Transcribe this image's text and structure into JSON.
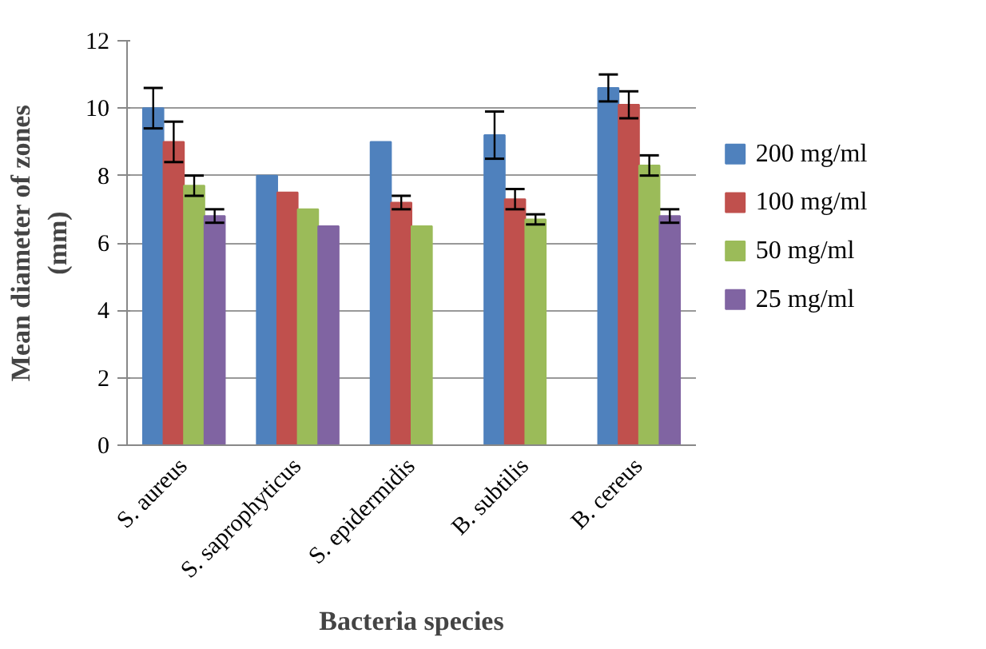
{
  "chart_data": {
    "type": "bar",
    "xlabel": "Bacteria species",
    "ylabel": "Mean diameter of zones\n(mm)",
    "categories": [
      "S. aureus",
      "S. saprophyticus",
      "S. epidermidis",
      "B. subtilis",
      "B. cereus"
    ],
    "series": [
      {
        "name": "200 mg/ml",
        "color": "#4f81bd",
        "values": [
          10,
          8,
          9,
          9.2,
          10.6
        ],
        "errors": [
          0.6,
          null,
          null,
          0.7,
          0.4
        ]
      },
      {
        "name": "100 mg/ml",
        "color": "#c0504d",
        "values": [
          9,
          7.5,
          7.2,
          7.3,
          10.1
        ],
        "errors": [
          0.6,
          null,
          0.2,
          0.3,
          0.4
        ]
      },
      {
        "name": "50 mg/ml",
        "color": "#9bbb59",
        "values": [
          7.7,
          7,
          6.5,
          6.7,
          8.3
        ],
        "errors": [
          0.3,
          null,
          null,
          0.15,
          0.3
        ]
      },
      {
        "name": "25 mg/ml",
        "color": "#8064a2",
        "values": [
          6.8,
          6.5,
          null,
          null,
          6.8
        ],
        "errors": [
          0.2,
          null,
          null,
          null,
          0.2
        ]
      }
    ],
    "ylim": [
      0,
      12
    ],
    "yticks": [
      0,
      2,
      4,
      6,
      8,
      10,
      12
    ],
    "grid": "y",
    "legend": "right"
  }
}
